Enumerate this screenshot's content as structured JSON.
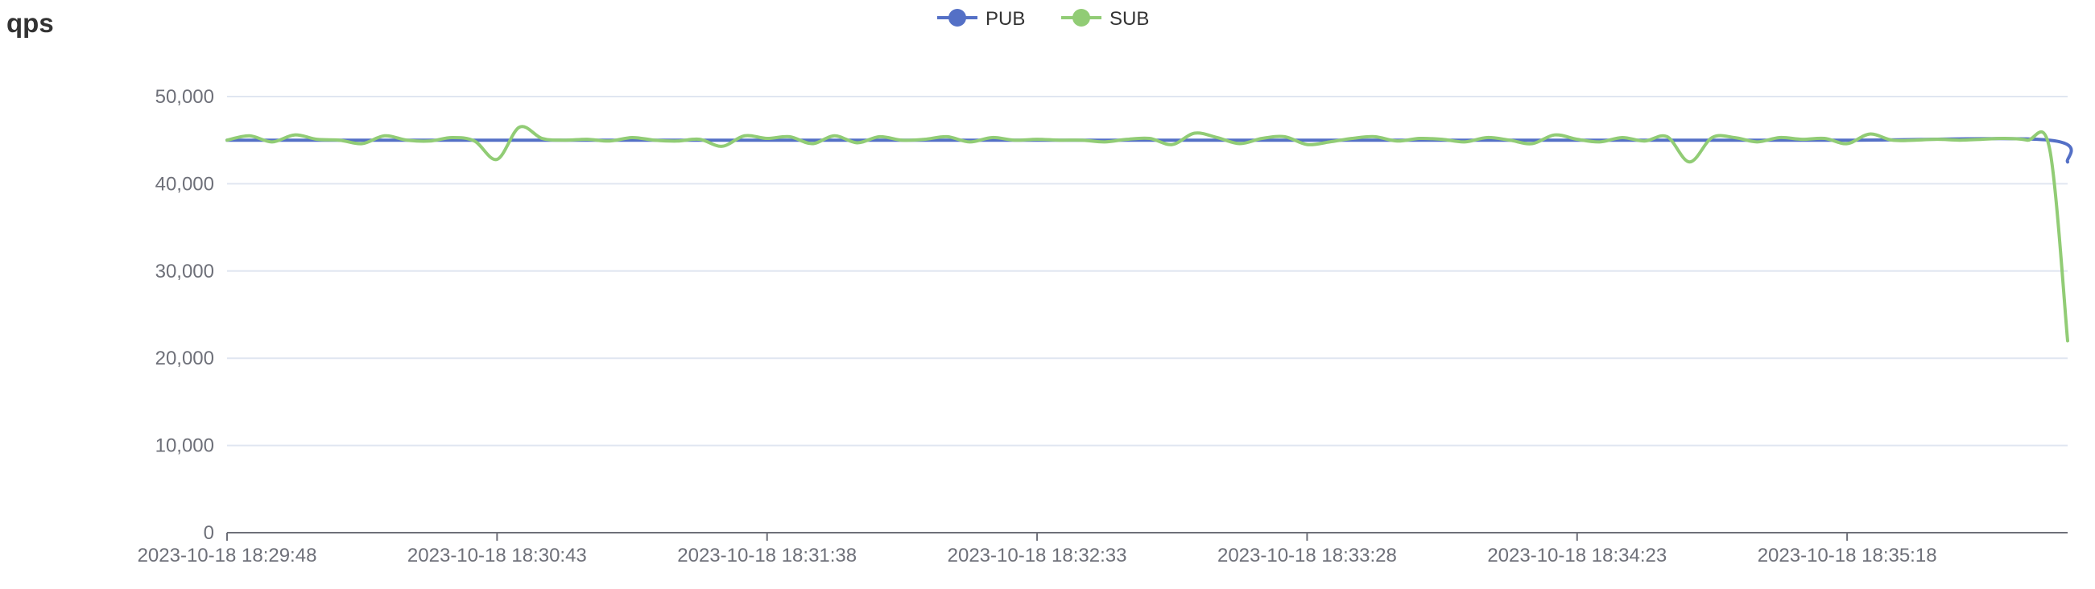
{
  "chart_data": {
    "type": "line",
    "title": "qps",
    "legend_position": "top-center",
    "grid": true,
    "smooth": true,
    "ylim": [
      0,
      50000
    ],
    "yticks": [
      0,
      10000,
      20000,
      30000,
      40000,
      50000
    ],
    "ytick_labels": [
      "0",
      "10,000",
      "20,000",
      "30,000",
      "40,000",
      "50,000"
    ],
    "xlim": [
      0,
      409
    ],
    "xticks": [
      0,
      60,
      120,
      180,
      240,
      300,
      360
    ],
    "xtick_labels": [
      "2023-10-18 18:29:48",
      "2023-10-18 18:30:43",
      "2023-10-18 18:31:38",
      "2023-10-18 18:32:33",
      "2023-10-18 18:33:28",
      "2023-10-18 18:34:23",
      "2023-10-18 18:35:18"
    ],
    "series": [
      {
        "name": "PUB",
        "color": "#5470c6",
        "x": [
          0,
          60,
          120,
          180,
          240,
          300,
          360,
          405,
          409
        ],
        "values": [
          45000,
          45000,
          45000,
          45000,
          45000,
          45000,
          45000,
          45000,
          42500
        ]
      },
      {
        "name": "SUB",
        "color": "#91cc75",
        "x": [
          0,
          5,
          10,
          15,
          20,
          25,
          30,
          35,
          40,
          45,
          50,
          55,
          60,
          65,
          70,
          75,
          80,
          85,
          90,
          95,
          100,
          105,
          110,
          115,
          120,
          125,
          130,
          135,
          140,
          145,
          150,
          155,
          160,
          165,
          170,
          175,
          180,
          185,
          190,
          195,
          200,
          205,
          210,
          215,
          220,
          225,
          230,
          235,
          240,
          245,
          250,
          255,
          260,
          265,
          270,
          275,
          280,
          285,
          290,
          295,
          300,
          305,
          310,
          315,
          320,
          325,
          330,
          335,
          340,
          345,
          350,
          355,
          360,
          365,
          370,
          375,
          380,
          385,
          390,
          395,
          400,
          405,
          409
        ],
        "values": [
          45000,
          45500,
          44800,
          45600,
          45100,
          45000,
          44600,
          45500,
          45000,
          44900,
          45300,
          44900,
          42800,
          46500,
          45200,
          45000,
          45100,
          44900,
          45300,
          45000,
          44900,
          45100,
          44300,
          45500,
          45200,
          45400,
          44600,
          45500,
          44700,
          45400,
          45000,
          45100,
          45400,
          44800,
          45300,
          45000,
          45100,
          45000,
          45000,
          44800,
          45100,
          45200,
          44500,
          45800,
          45300,
          44600,
          45200,
          45400,
          44500,
          44800,
          45200,
          45400,
          44900,
          45200,
          45100,
          44800,
          45300,
          45000,
          44600,
          45600,
          45100,
          44800,
          45300,
          44900,
          45400,
          42500,
          45300,
          45300,
          44800,
          45300,
          45100,
          45200,
          44600,
          45700,
          45000,
          45000,
          45100,
          45000,
          45100,
          45200,
          45000,
          44000,
          22000
        ]
      }
    ]
  }
}
